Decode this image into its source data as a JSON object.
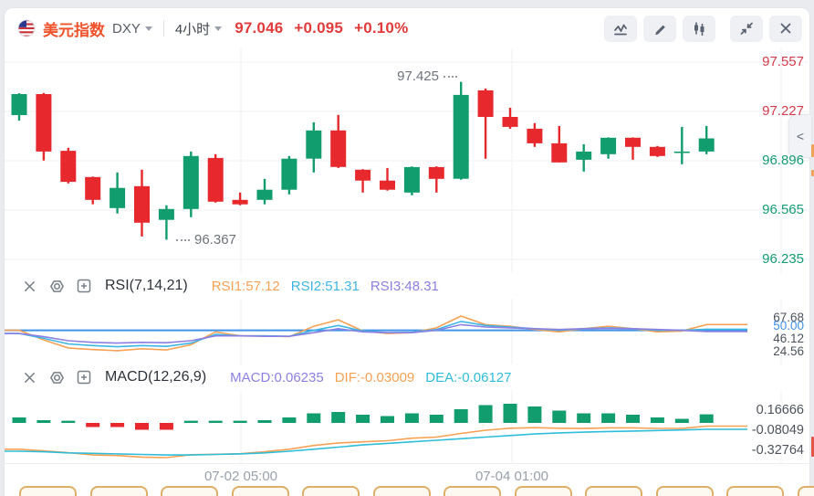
{
  "header": {
    "title": "美元指数",
    "title_color": "#f0532b",
    "symbol": "DXY",
    "timeframe": "4小时",
    "price": "97.046",
    "change": "+0.095",
    "change_pct": "+0.10%",
    "price_color": "#e23b3b",
    "toolbar_icons": [
      "indicator-line-icon",
      "draw-pencil-icon",
      "candlestick-style-icon",
      "collapse-icon",
      "close-icon"
    ]
  },
  "main_chart": {
    "axis_labels": [
      {
        "text": "97.557",
        "color": "#d23c4b"
      },
      {
        "text": "97.227",
        "color": "#d23c4b"
      },
      {
        "text": "96.896",
        "color": "#159c74"
      },
      {
        "text": "96.565",
        "color": "#159c74"
      },
      {
        "text": "96.235",
        "color": "#159c74"
      }
    ],
    "high_annotation": "97.425",
    "low_annotation": "96.367",
    "collapse_chevron": "<"
  },
  "rsi": {
    "title": "RSI(7,14,21)",
    "values": [
      {
        "text": "RSI1:57.12",
        "color": "#f7a154"
      },
      {
        "text": "RSI2:51.31",
        "color": "#3db6e3"
      },
      {
        "text": "RSI3:48.31",
        "color": "#8b80e2"
      }
    ],
    "axis_labels": [
      {
        "text": "67.68",
        "color": "#4d525c"
      },
      {
        "text": "50.00",
        "color": "#3f93e8"
      },
      {
        "text": "46.12",
        "color": "#4d525c"
      },
      {
        "text": "24.56",
        "color": "#4d525c"
      }
    ]
  },
  "macd": {
    "title": "MACD(12,26,9)",
    "values": [
      {
        "text": "MACD:0.06235",
        "color": "#8b80e2"
      },
      {
        "text": "DIF:-0.03009",
        "color": "#f7a154"
      },
      {
        "text": "DEA:-0.06127",
        "color": "#2fbdd9"
      }
    ],
    "axis_labels": [
      {
        "text": "0.16666",
        "color": "#4d525c"
      },
      {
        "text": "-0.08049",
        "color": "#4d525c"
      },
      {
        "text": "-0.32764",
        "color": "#4d525c"
      }
    ]
  },
  "time_axis": {
    "labels": [
      "07-02 05:00",
      "07-04 01:00"
    ]
  },
  "bottom_buttons": {
    "count": 12
  },
  "chart_data": {
    "type": "candlestick",
    "symbol": "DXY",
    "title": "美元指数",
    "interval": "4小时",
    "last_price": 97.046,
    "change": 0.095,
    "change_pct": "+0.10%",
    "price_axis": [
      97.557,
      97.227,
      96.896,
      96.565,
      96.235
    ],
    "time_axis": [
      "07-02 05:00",
      "07-04 01:00"
    ],
    "annotations": {
      "high": 97.425,
      "low": 96.367
    },
    "colors": {
      "up": "#129d6e",
      "down": "#e7292e",
      "midline": "#3f93e8"
    },
    "candles": {
      "open": [
        97.202,
        97.343,
        96.963,
        96.787,
        96.579,
        96.726,
        96.5,
        96.573,
        96.915,
        96.634,
        96.634,
        96.702,
        96.91,
        97.099,
        96.836,
        96.763,
        96.683,
        96.854,
        96.775,
        97.368,
        97.19,
        97.111,
        97.013,
        96.903,
        96.94,
        97.05,
        96.989,
        96.952,
        96.958
      ],
      "high": [
        97.349,
        97.35,
        96.983,
        96.79,
        96.818,
        96.836,
        96.598,
        96.958,
        96.94,
        96.683,
        96.775,
        96.928,
        97.154,
        97.203,
        96.84,
        96.848,
        96.858,
        96.858,
        97.425,
        97.38,
        97.251,
        97.148,
        97.129,
        97.007,
        97.053,
        97.053,
        96.995,
        97.123,
        97.129
      ],
      "low": [
        97.165,
        96.897,
        96.744,
        96.604,
        96.543,
        96.389,
        96.367,
        96.518,
        96.616,
        96.598,
        96.604,
        96.671,
        96.818,
        96.848,
        96.683,
        96.696,
        96.665,
        96.683,
        96.769,
        96.91,
        97.111,
        96.989,
        96.885,
        96.824,
        96.91,
        96.903,
        96.922,
        96.873,
        96.94
      ],
      "close": [
        97.343,
        96.958,
        96.755,
        96.634,
        96.714,
        96.481,
        96.573,
        96.928,
        96.622,
        96.604,
        96.702,
        96.91,
        97.099,
        96.854,
        96.763,
        96.702,
        96.854,
        96.775,
        97.337,
        97.19,
        97.123,
        97.013,
        96.885,
        96.958,
        97.05,
        96.989,
        96.928,
        96.958,
        97.046
      ]
    },
    "indicators": [
      {
        "name": "RSI",
        "params": "(7,14,21)",
        "midline": 50,
        "axis": [
          67.68,
          50.0,
          46.12,
          24.56
        ],
        "series": [
          {
            "name": "RSI1",
            "value": 57.12,
            "color": "#f7a154",
            "data": [
              50,
              38,
              28,
              26,
              24.6,
              27,
              25.5,
              32,
              48,
              43,
              43,
              42,
              55,
              63,
              49,
              46,
              47,
              53,
              67.7,
              57,
              55,
              51,
              48,
              52,
              55,
              52,
              48,
              49,
              57.12
            ]
          },
          {
            "name": "RSI2",
            "value": 51.31,
            "color": "#3db6e3",
            "data": [
              46,
              40,
              33,
              31,
              29.5,
              31,
              30,
              34,
              45,
              43,
              43,
              42.5,
              50,
              56,
              49,
              47,
              47.5,
              51,
              61,
              56,
              54,
              52,
              50,
              52,
              53,
              52,
              50,
              50,
              51.31
            ]
          },
          {
            "name": "RSI3",
            "value": 48.31,
            "color": "#8b80e2",
            "data": [
              46,
              42,
              37,
              35,
              34,
              35,
              34.5,
              37,
              43,
              43,
              42.5,
              42.5,
              47,
              52,
              48,
              47,
              47,
              50,
              57,
              54,
              53,
              52,
              51,
              52,
              52.5,
              52,
              51,
              50,
              48.31
            ]
          }
        ]
      },
      {
        "name": "MACD",
        "params": "(12,26,9)",
        "macd_value": 0.06235,
        "dif_value": -0.03009,
        "dea_value": -0.06127,
        "axis": [
          0.16666,
          -0.08049,
          -0.32764
        ],
        "series": [
          {
            "name": "DIF",
            "value": -0.03009,
            "color": "#f7a154",
            "data": [
              -0.25,
              -0.265,
              -0.2825,
              -0.305,
              -0.31,
              -0.325,
              -0.33,
              -0.303,
              -0.298,
              -0.293,
              -0.275,
              -0.25,
              -0.215,
              -0.19,
              -0.18,
              -0.17,
              -0.145,
              -0.135,
              -0.1,
              -0.07,
              -0.05,
              -0.045,
              -0.05,
              -0.053,
              -0.047,
              -0.047,
              -0.052,
              -0.052,
              -0.03009
            ]
          },
          {
            "name": "DEA",
            "value": -0.06127,
            "color": "#2fbdd9",
            "data": [
              -0.27,
              -0.275,
              -0.285,
              -0.29,
              -0.295,
              -0.3,
              -0.305,
              -0.305,
              -0.3,
              -0.295,
              -0.285,
              -0.27,
              -0.25,
              -0.23,
              -0.21,
              -0.195,
              -0.18,
              -0.165,
              -0.15,
              -0.135,
              -0.12,
              -0.105,
              -0.095,
              -0.088,
              -0.082,
              -0.077,
              -0.072,
              -0.067,
              -0.06127
            ]
          }
        ],
        "histogram_rule": "2*(DIF-DEA)"
      }
    ]
  }
}
